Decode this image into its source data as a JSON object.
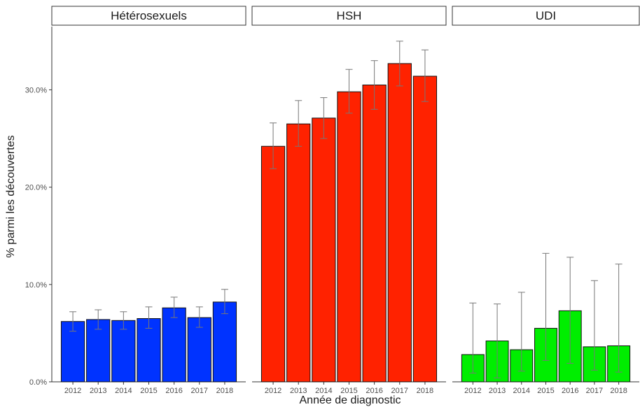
{
  "chart_data": {
    "type": "bar",
    "layout": "faceted",
    "facets": [
      "Hétérosexuels",
      "HSH",
      "UDI"
    ],
    "categories": [
      "2012",
      "2013",
      "2014",
      "2015",
      "2016",
      "2017",
      "2018"
    ],
    "series": [
      {
        "facet": "Hétérosexuels",
        "color": "#0033ff",
        "values": [
          6.2,
          6.4,
          6.3,
          6.5,
          7.6,
          6.6,
          8.2
        ],
        "error_low": [
          5.2,
          5.4,
          5.4,
          5.5,
          6.6,
          5.6,
          7.0
        ],
        "error_high": [
          7.2,
          7.4,
          7.2,
          7.7,
          8.7,
          7.7,
          9.5
        ]
      },
      {
        "facet": "HSH",
        "color": "#ff2200",
        "values": [
          24.2,
          26.5,
          27.1,
          29.8,
          30.5,
          32.7,
          31.4
        ],
        "error_low": [
          21.9,
          24.2,
          25.0,
          27.6,
          28.0,
          30.4,
          28.8
        ],
        "error_high": [
          26.6,
          28.9,
          29.2,
          32.1,
          33.0,
          35.0,
          34.1
        ]
      },
      {
        "facet": "UDI",
        "color": "#00ee00",
        "values": [
          2.8,
          4.2,
          3.3,
          5.5,
          7.3,
          3.6,
          3.7
        ],
        "error_low": [
          0.9,
          0.4,
          1.1,
          2.2,
          1.9,
          1.2,
          1.0
        ],
        "error_high": [
          8.1,
          8.0,
          9.2,
          13.2,
          12.8,
          10.4,
          12.1
        ]
      }
    ],
    "xlabel": "Année de diagnostic",
    "ylabel": "% parmi les découvertes",
    "yticks": [
      0,
      10,
      20,
      30
    ],
    "ytick_labels": [
      "0.0%",
      "10.0%",
      "20.0%",
      "30.0%"
    ],
    "ylim": [
      0,
      36.5
    ],
    "grid": false,
    "legend": "none"
  }
}
